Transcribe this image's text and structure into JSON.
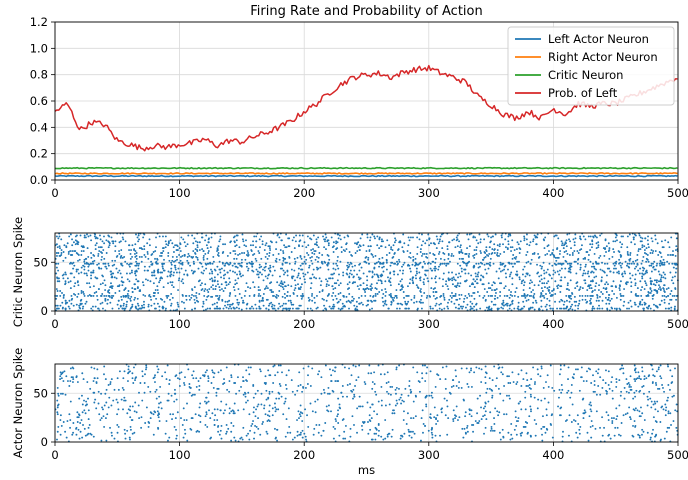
{
  "figure": {
    "x_axis_label": "ms"
  },
  "chart_data": [
    {
      "type": "line",
      "title": "Firing Rate and Probability of Action",
      "xlabel": "",
      "ylabel": "",
      "xlim": [
        0,
        500
      ],
      "ylim": [
        0,
        1.2
      ],
      "xticks": [
        0,
        100,
        200,
        300,
        400,
        500
      ],
      "yticks": [
        0.0,
        0.2,
        0.4,
        0.6,
        0.8,
        1.0,
        1.2
      ],
      "grid": true,
      "legend": "top-right",
      "series": [
        {
          "name": "Left Actor Neuron",
          "color": "#1f77b4",
          "x": [
            0,
            50,
            100,
            150,
            200,
            250,
            300,
            350,
            400,
            450,
            500
          ],
          "y": [
            0.03,
            0.03,
            0.03,
            0.03,
            0.03,
            0.03,
            0.03,
            0.03,
            0.03,
            0.03,
            0.03
          ]
        },
        {
          "name": "Right Actor Neuron",
          "color": "#ff7f0e",
          "x": [
            0,
            50,
            100,
            150,
            200,
            250,
            300,
            350,
            400,
            450,
            500
          ],
          "y": [
            0.05,
            0.05,
            0.05,
            0.05,
            0.05,
            0.05,
            0.05,
            0.05,
            0.05,
            0.05,
            0.05
          ]
        },
        {
          "name": "Critic Neuron",
          "color": "#2ca02c",
          "x": [
            0,
            50,
            100,
            150,
            200,
            250,
            300,
            350,
            400,
            450,
            500
          ],
          "y": [
            0.09,
            0.09,
            0.09,
            0.09,
            0.09,
            0.09,
            0.09,
            0.09,
            0.09,
            0.09,
            0.09
          ]
        },
        {
          "name": "Prob. of Left",
          "color": "#d62728",
          "x": [
            0,
            10,
            20,
            30,
            40,
            50,
            60,
            70,
            80,
            90,
            100,
            110,
            120,
            130,
            140,
            150,
            160,
            170,
            180,
            190,
            200,
            210,
            220,
            230,
            240,
            250,
            260,
            270,
            280,
            290,
            300,
            310,
            320,
            330,
            340,
            350,
            360,
            370,
            380,
            390,
            400,
            410,
            420,
            430,
            440,
            450,
            460,
            470,
            480,
            490,
            500
          ],
          "y": [
            0.52,
            0.58,
            0.38,
            0.44,
            0.42,
            0.3,
            0.27,
            0.24,
            0.26,
            0.25,
            0.27,
            0.28,
            0.31,
            0.26,
            0.3,
            0.29,
            0.33,
            0.36,
            0.4,
            0.45,
            0.52,
            0.58,
            0.66,
            0.73,
            0.78,
            0.8,
            0.81,
            0.78,
            0.82,
            0.84,
            0.85,
            0.81,
            0.78,
            0.74,
            0.63,
            0.57,
            0.5,
            0.47,
            0.52,
            0.47,
            0.54,
            0.5,
            0.58,
            0.56,
            0.58,
            0.58,
            0.62,
            0.66,
            0.7,
            0.74,
            0.78
          ]
        }
      ]
    },
    {
      "type": "scatter",
      "title": "",
      "xlabel": "",
      "ylabel": "Critic Neuron Spike",
      "xlim": [
        0,
        500
      ],
      "ylim": [
        0,
        80
      ],
      "xticks": [
        0,
        100,
        200,
        300,
        400,
        500
      ],
      "yticks": [
        0,
        50
      ],
      "grid": true,
      "color": "#1f77b4",
      "neurons": 80,
      "highlighted_neurons": [
        2,
        15,
        48
      ],
      "approx_spikes_per_neuron": 36
    },
    {
      "type": "scatter",
      "title": "",
      "xlabel": "ms",
      "ylabel": "Actor Neuron Spike",
      "xlim": [
        0,
        500
      ],
      "ylim": [
        0,
        80
      ],
      "xticks": [
        0,
        100,
        200,
        300,
        400,
        500
      ],
      "yticks": [
        0,
        50
      ],
      "grid": true,
      "color": "#1f77b4",
      "neurons": 80,
      "approx_spikes_per_neuron": 18
    }
  ]
}
